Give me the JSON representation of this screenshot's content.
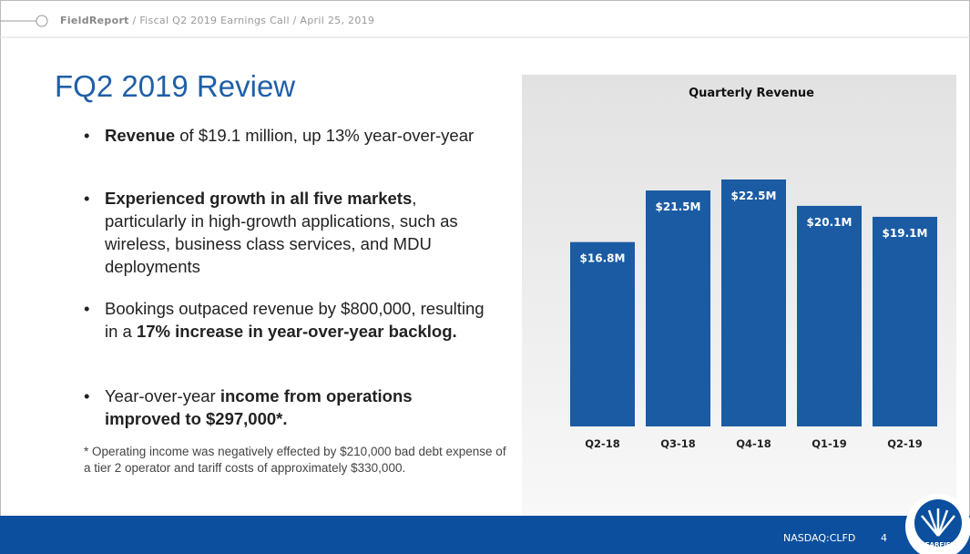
{
  "header": {
    "brand": "FieldReport",
    "breadcrumb": " / Fiscal Q2 2019 Earnings Call / April 25, 2019"
  },
  "title": "FQ2 2019 Review",
  "bullets": [
    [
      {
        "text": "Revenue",
        "bold": true
      },
      {
        "text": " of $19.1 million, up 13% year-over-year",
        "bold": false
      }
    ],
    [
      {
        "text": "Experienced growth in all five markets",
        "bold": true
      },
      {
        "text": ", particularly in high-growth applications, such as wireless, business class services, and MDU deployments",
        "bold": false
      }
    ],
    [
      {
        "text": "Bookings outpaced revenue by $800,000, resulting in a ",
        "bold": false
      },
      {
        "text": "17% increase in year-over-year backlog.",
        "bold": true
      }
    ],
    [
      {
        "text": "Year-over-year  ",
        "bold": false
      },
      {
        "text": "income from operations improved to $297,000*.",
        "bold": true
      }
    ]
  ],
  "footnote": "* Operating income was negatively effected by $210,000 bad debt expense of a tier 2 operator and tariff costs of approximately $330,000.",
  "chart_data": {
    "type": "bar",
    "title": "Quarterly Revenue",
    "categories": [
      "Q2-18",
      "Q3-18",
      "Q4-18",
      "Q1-19",
      "Q2-19"
    ],
    "values": [
      16.8,
      21.5,
      22.5,
      20.1,
      19.1
    ],
    "value_labels": [
      "$16.8M",
      "$21.5M",
      "$22.5M",
      "$20.1M",
      "$19.1M"
    ],
    "color": "#1b5ba3"
  },
  "footer": {
    "ticker": "NASDAQ:CLFD",
    "page": "4",
    "logo": "CLEARFIELD"
  }
}
